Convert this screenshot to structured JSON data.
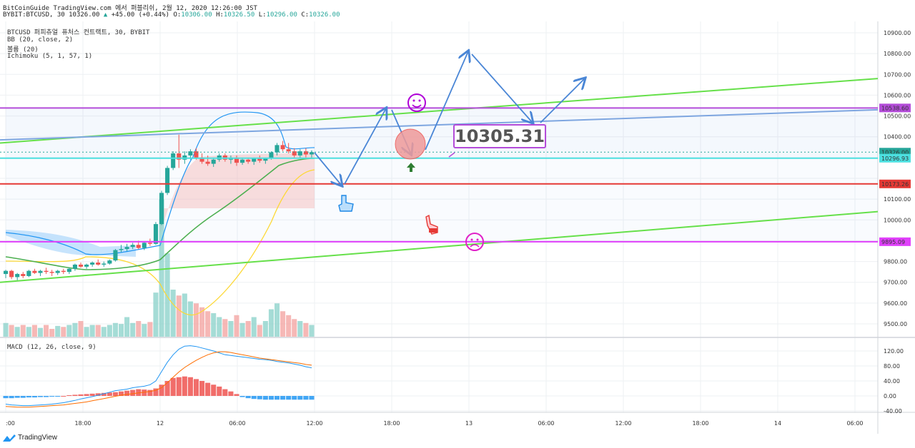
{
  "header": {
    "line1": "BitCoinGuide TradingView.com 에서 퍼블리쉬, 2월 12, 2020 12:26:00 JST",
    "symbol": "BYBIT:BTCUSD, 30 10326.00",
    "change": "+45.00 (+0.44%)",
    "o_label": "O:",
    "o": "10306.00",
    "h_label": "H:",
    "h": "10326.50",
    "l_label": "L:",
    "l": "10296.00",
    "c_label": "C:",
    "c": "10326.00"
  },
  "legend": {
    "title": "BTCUSD 퍼피츄얼 퓨처스 컨트랙트, 30, BYBIT",
    "bb": "BB (20, close, 2)",
    "volume": "볼륨 (20)",
    "ichimoku": "Ichimoku (5, 1, 57, 1)",
    "macd": "MACD (12, 26, close, 9)"
  },
  "annotation": {
    "price_box": "10305.31"
  },
  "footer": {
    "brand": "TradingView"
  },
  "colors": {
    "up": "#26a69a",
    "down": "#ef5350",
    "purple": "#b44cd9",
    "red_line": "#e53935",
    "green_line": "#66e04a",
    "blue_line": "#7ea6e0",
    "cyan_line": "#4de0e0",
    "arrow": "#4a86d6"
  },
  "chart_data": [
    {
      "type": "candlestick",
      "x_ticks": [
        ":00",
        "18:00",
        "12",
        "06:00",
        "12:00",
        "18:00",
        "13",
        "06:00",
        "12:00",
        "18:00",
        "14",
        "06:00"
      ],
      "y_ticks": [
        "10900.00",
        "10800.00",
        "10700.00",
        "10600.00",
        "10500.00",
        "10400.00",
        "10100.00",
        "10000.00",
        "9800.00",
        "9700.00",
        "9600.00",
        "9500.00"
      ],
      "ylim": [
        9440,
        10960
      ],
      "candles": [
        [
          9740,
          9760,
          9720,
          9755
        ],
        [
          9755,
          9760,
          9715,
          9725
        ],
        [
          9725,
          9745,
          9710,
          9740
        ],
        [
          9740,
          9750,
          9720,
          9730
        ],
        [
          9730,
          9760,
          9725,
          9755
        ],
        [
          9755,
          9765,
          9740,
          9745
        ],
        [
          9745,
          9760,
          9730,
          9755
        ],
        [
          9755,
          9770,
          9740,
          9750
        ],
        [
          9750,
          9760,
          9730,
          9745
        ],
        [
          9745,
          9760,
          9735,
          9755
        ],
        [
          9755,
          9765,
          9740,
          9750
        ],
        [
          9750,
          9770,
          9740,
          9765
        ],
        [
          9765,
          9790,
          9755,
          9785
        ],
        [
          9785,
          9795,
          9770,
          9775
        ],
        [
          9775,
          9790,
          9765,
          9785
        ],
        [
          9785,
          9800,
          9775,
          9795
        ],
        [
          9795,
          9810,
          9780,
          9785
        ],
        [
          9785,
          9800,
          9775,
          9790
        ],
        [
          9790,
          9810,
          9785,
          9805
        ],
        [
          9805,
          9860,
          9800,
          9855
        ],
        [
          9855,
          9880,
          9845,
          9860
        ],
        [
          9860,
          9885,
          9850,
          9870
        ],
        [
          9870,
          9890,
          9860,
          9880
        ],
        [
          9880,
          9900,
          9860,
          9865
        ],
        [
          9865,
          9895,
          9855,
          9890
        ],
        [
          9890,
          9910,
          9875,
          9885
        ],
        [
          9885,
          9990,
          9880,
          9980
        ],
        [
          9980,
          10140,
          9975,
          10130
        ],
        [
          10130,
          10260,
          10120,
          10250
        ],
        [
          10250,
          10330,
          10240,
          10320
        ],
        [
          10320,
          10410,
          10250,
          10290
        ],
        [
          10290,
          10330,
          10270,
          10310
        ],
        [
          10310,
          10340,
          10290,
          10330
        ],
        [
          10330,
          10345,
          10290,
          10300
        ],
        [
          10300,
          10320,
          10270,
          10280
        ],
        [
          10280,
          10310,
          10260,
          10270
        ],
        [
          10270,
          10300,
          10255,
          10290
        ],
        [
          10290,
          10320,
          10280,
          10310
        ],
        [
          10310,
          10320,
          10280,
          10290
        ],
        [
          10290,
          10310,
          10270,
          10300
        ],
        [
          10300,
          10310,
          10260,
          10275
        ],
        [
          10275,
          10300,
          10265,
          10290
        ],
        [
          10290,
          10300,
          10270,
          10280
        ],
        [
          10280,
          10300,
          10265,
          10295
        ],
        [
          10295,
          10310,
          10275,
          10285
        ],
        [
          10285,
          10300,
          10270,
          10295
        ],
        [
          10295,
          10330,
          10290,
          10325
        ],
        [
          10325,
          10370,
          10310,
          10360
        ],
        [
          10360,
          10380,
          10330,
          10340
        ],
        [
          10340,
          10370,
          10320,
          10330
        ],
        [
          10330,
          10345,
          10300,
          10310
        ],
        [
          10310,
          10340,
          10300,
          10330
        ],
        [
          10330,
          10345,
          10300,
          10315
        ],
        [
          10315,
          10335,
          10295,
          10326
        ]
      ],
      "volume": [
        14,
        12,
        10,
        12,
        10,
        12,
        9,
        12,
        8,
        11,
        10,
        12,
        14,
        16,
        10,
        12,
        12,
        10,
        12,
        14,
        13,
        20,
        14,
        16,
        13,
        15,
        45,
        140,
        85,
        48,
        42,
        44,
        36,
        34,
        30,
        26,
        24,
        20,
        18,
        16,
        22,
        14,
        16,
        20,
        12,
        16,
        28,
        34,
        26,
        22,
        18,
        16,
        14,
        12
      ],
      "levels": [
        {
          "label": "10538.60",
          "value": 10538.6,
          "color": "#b44cd9"
        },
        {
          "label": "10326.00",
          "value": 10326,
          "color": "#26a69a"
        },
        {
          "label": "04:02",
          "value": 10298,
          "color": "#26a69a"
        },
        {
          "label": "10296.93",
          "value": 10296.93,
          "color": "#4de0e0"
        },
        {
          "label": "10173.26",
          "value": 10173.26,
          "color": "#e53935"
        },
        {
          "label": "9895.09",
          "value": 9895.09,
          "color": "#e040fb"
        }
      ]
    },
    {
      "type": "macd",
      "y_ticks": [
        "120.00",
        "80.00",
        "40.00",
        "0.00",
        "-40.00"
      ],
      "ylim": [
        -50,
        140
      ],
      "histogram": [
        -6,
        -6,
        -5,
        -5,
        -4,
        -4,
        -3,
        -3,
        -2,
        -2,
        0,
        2,
        3,
        4,
        5,
        6,
        7,
        8,
        9,
        10,
        12,
        14,
        16,
        18,
        17,
        16,
        20,
        30,
        40,
        48,
        50,
        52,
        50,
        45,
        40,
        35,
        30,
        25,
        18,
        12,
        5,
        -3,
        -6,
        -8,
        -9,
        -10,
        -10,
        -10,
        -10,
        -10,
        -10,
        -10,
        -10,
        -10
      ],
      "macd": [
        -22,
        -24,
        -25,
        -26,
        -26,
        -25,
        -24,
        -23,
        -22,
        -20,
        -18,
        -15,
        -12,
        -8,
        -5,
        -2,
        2,
        6,
        10,
        14,
        16,
        18,
        22,
        24,
        26,
        30,
        40,
        65,
        90,
        110,
        125,
        133,
        134,
        132,
        128,
        124,
        120,
        115,
        110,
        108,
        106,
        104,
        102,
        100,
        98,
        97,
        95,
        92,
        90,
        88,
        85,
        82,
        78,
        75
      ],
      "signal": [
        -28,
        -29,
        -30,
        -30,
        -30,
        -29,
        -28,
        -27,
        -26,
        -25,
        -24,
        -22,
        -20,
        -18,
        -16,
        -13,
        -10,
        -7,
        -4,
        -1,
        2,
        4,
        6,
        8,
        10,
        12,
        15,
        22,
        35,
        50,
        64,
        76,
        86,
        95,
        103,
        110,
        115,
        118,
        118,
        116,
        113,
        110,
        107,
        104,
        101,
        99,
        97,
        95,
        93,
        91,
        89,
        87,
        84,
        82
      ]
    }
  ]
}
